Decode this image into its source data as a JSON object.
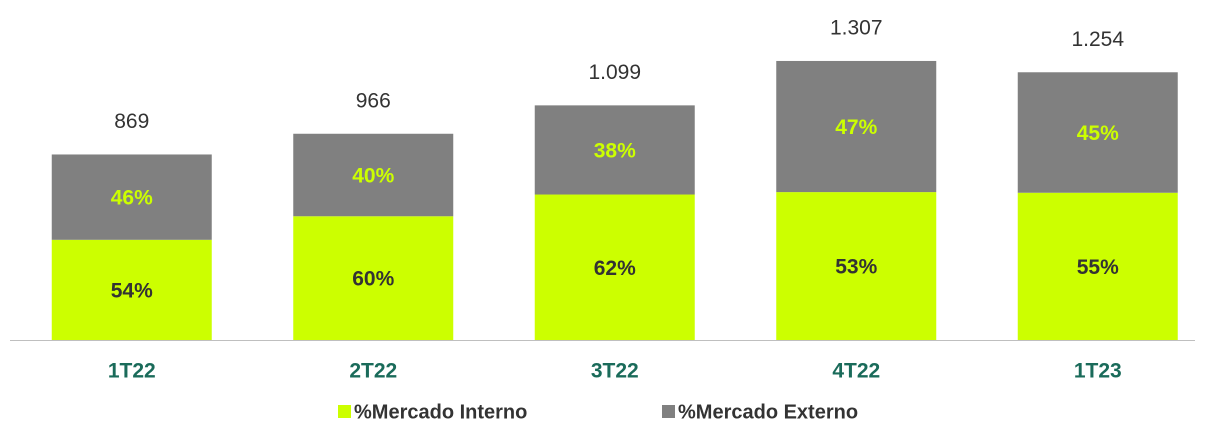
{
  "chart_data": {
    "type": "bar",
    "stacked": true,
    "categories": [
      "1T22",
      "2T22",
      "3T22",
      "4T22",
      "1T23"
    ],
    "totals": {
      "values": [
        869,
        966,
        1099,
        1307,
        1254
      ],
      "value_labels": [
        "869",
        "966",
        "1.099",
        "1.307",
        "1.254"
      ]
    },
    "series": [
      {
        "name": "%Mercado Interno",
        "color": "#ccff00",
        "label_color": "#333333",
        "values": [
          54,
          60,
          62,
          53,
          55
        ],
        "value_labels": [
          "54%",
          "60%",
          "62%",
          "53%",
          "55%"
        ]
      },
      {
        "name": "%Mercado Externo",
        "color": "#808080",
        "label_color": "#ccff00",
        "values": [
          46,
          40,
          38,
          47,
          45
        ],
        "value_labels": [
          "46%",
          "40%",
          "38%",
          "47%",
          "45%"
        ]
      }
    ],
    "category_color": "#1a6b5a",
    "legend": "bottom"
  }
}
